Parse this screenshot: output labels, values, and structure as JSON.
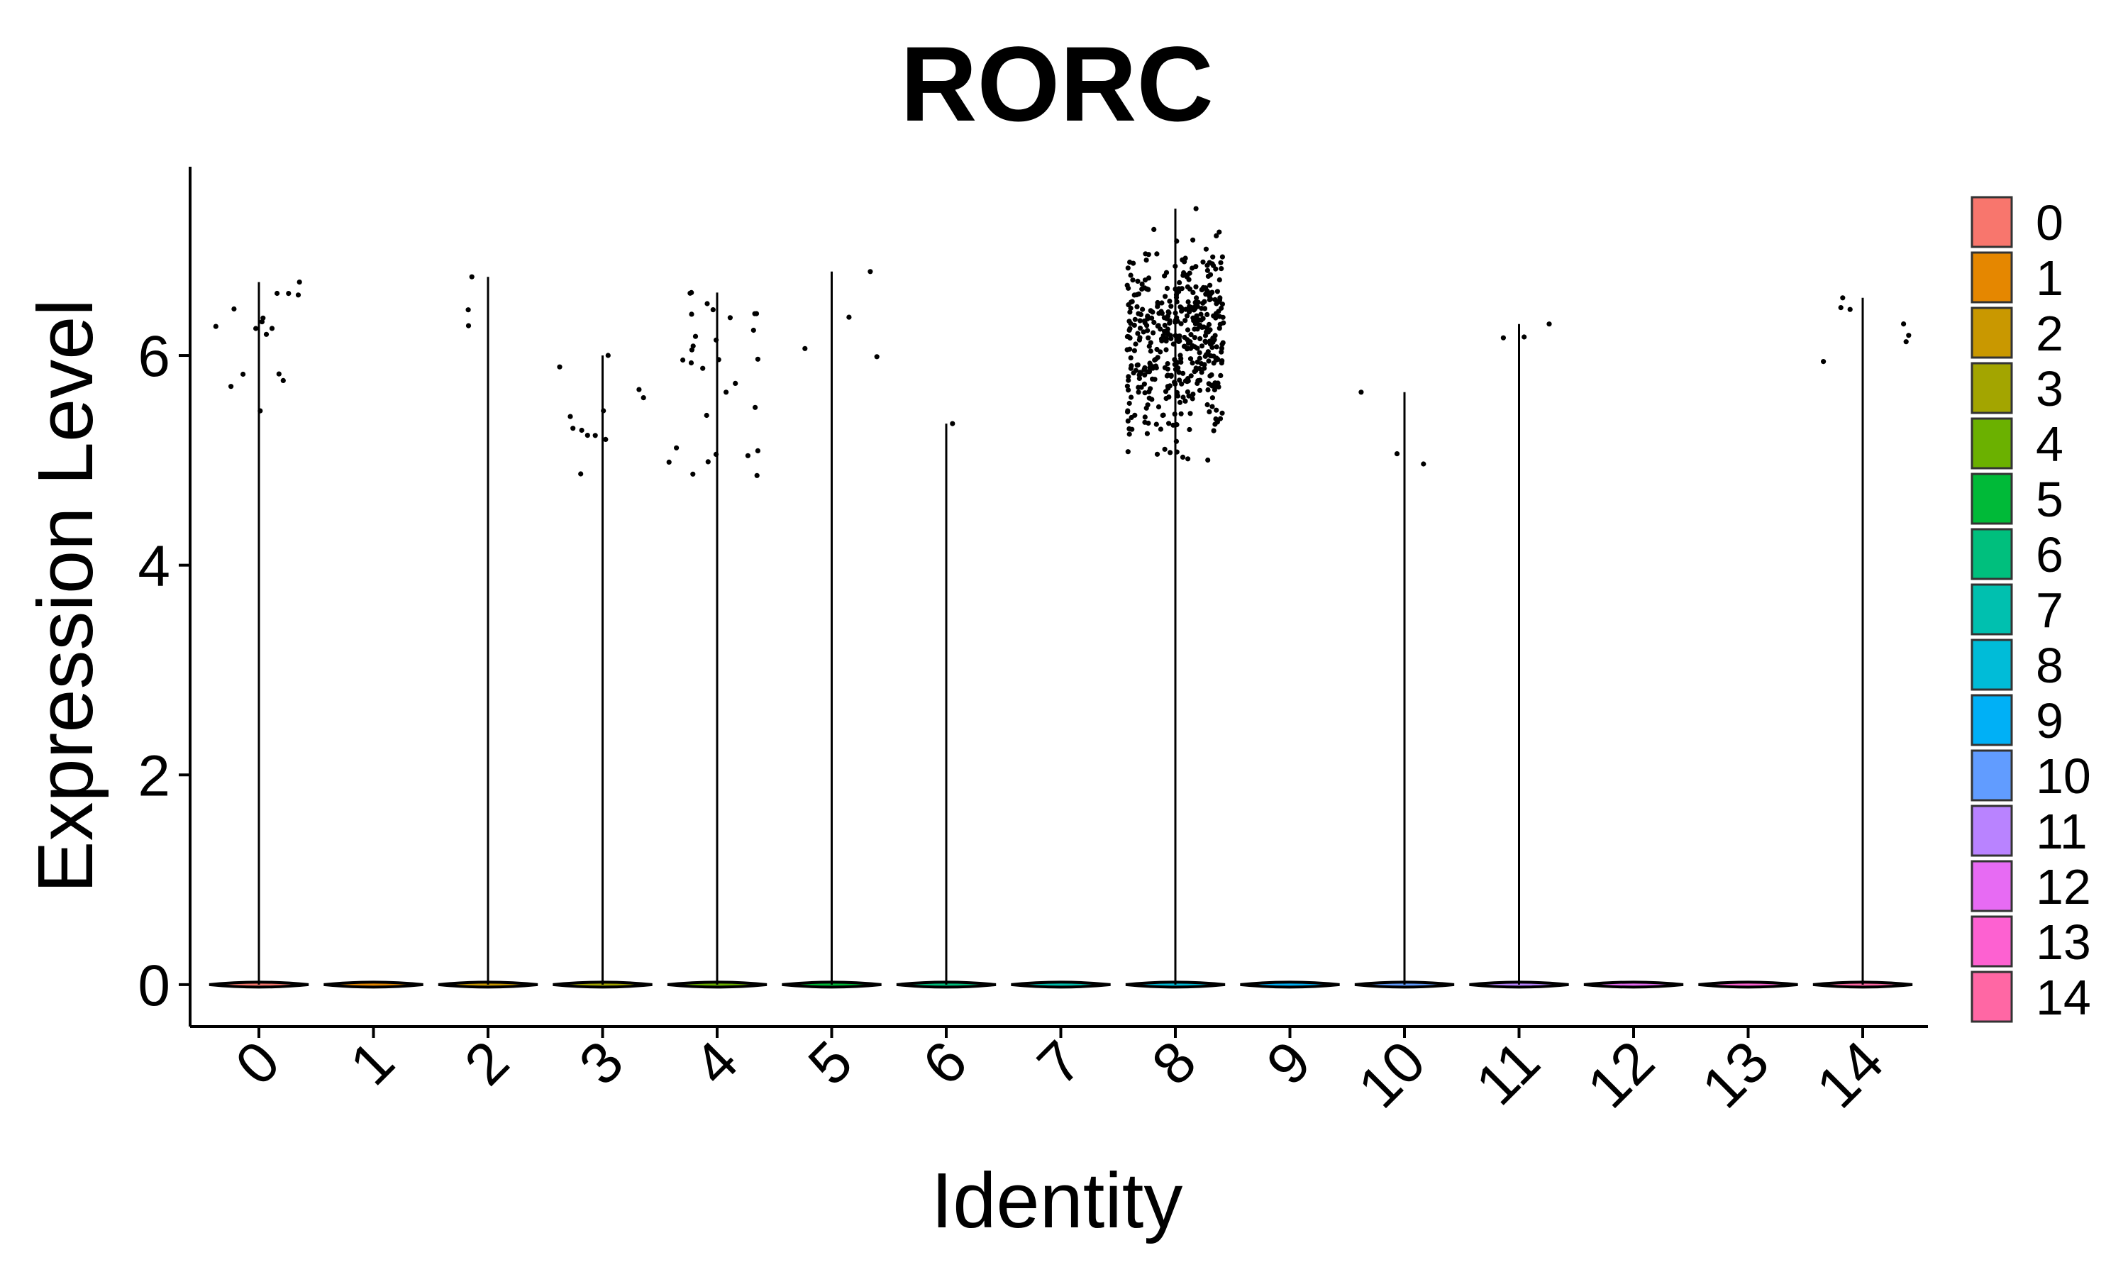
{
  "chart_data": {
    "type": "violin",
    "title": "RORC",
    "xlabel": "Identity",
    "ylabel": "Expression Level",
    "ylim": [
      -0.4,
      7.8
    ],
    "yticks": [
      0,
      2,
      4,
      6
    ],
    "categories": [
      "0",
      "1",
      "2",
      "3",
      "4",
      "5",
      "6",
      "7",
      "8",
      "9",
      "10",
      "11",
      "12",
      "13",
      "14"
    ],
    "max_values": [
      6.7,
      0,
      6.75,
      6.0,
      6.6,
      6.8,
      5.35,
      0,
      7.4,
      0,
      5.65,
      6.3,
      0,
      0,
      6.55
    ],
    "point_counts": [
      16,
      0,
      3,
      12,
      30,
      4,
      1,
      0,
      450,
      0,
      3,
      3,
      0,
      0,
      7
    ],
    "point_ranges": [
      [
        5.3,
        6.7
      ],
      null,
      [
        6.2,
        6.75
      ],
      [
        4.8,
        6.0
      ],
      [
        4.85,
        6.6
      ],
      [
        5.8,
        6.8
      ],
      [
        5.35,
        5.35
      ],
      null,
      [
        4.85,
        7.4
      ],
      null,
      [
        4.8,
        5.65
      ],
      [
        6.1,
        6.3
      ],
      null,
      null,
      [
        5.7,
        6.55
      ]
    ],
    "legend": {
      "position": "right",
      "items": [
        {
          "label": "0",
          "color": "#F8766D"
        },
        {
          "label": "1",
          "color": "#E58700"
        },
        {
          "label": "2",
          "color": "#C99800"
        },
        {
          "label": "3",
          "color": "#A3A500"
        },
        {
          "label": "4",
          "color": "#6BB100"
        },
        {
          "label": "5",
          "color": "#00BA38"
        },
        {
          "label": "6",
          "color": "#00BF7D"
        },
        {
          "label": "7",
          "color": "#00C0AF"
        },
        {
          "label": "8",
          "color": "#00BCD8"
        },
        {
          "label": "9",
          "color": "#00B0F6"
        },
        {
          "label": "10",
          "color": "#619CFF"
        },
        {
          "label": "11",
          "color": "#B983FF"
        },
        {
          "label": "12",
          "color": "#E76BF3"
        },
        {
          "label": "13",
          "color": "#FD61D1"
        },
        {
          "label": "14",
          "color": "#FF67A4"
        }
      ]
    },
    "grid": false
  }
}
